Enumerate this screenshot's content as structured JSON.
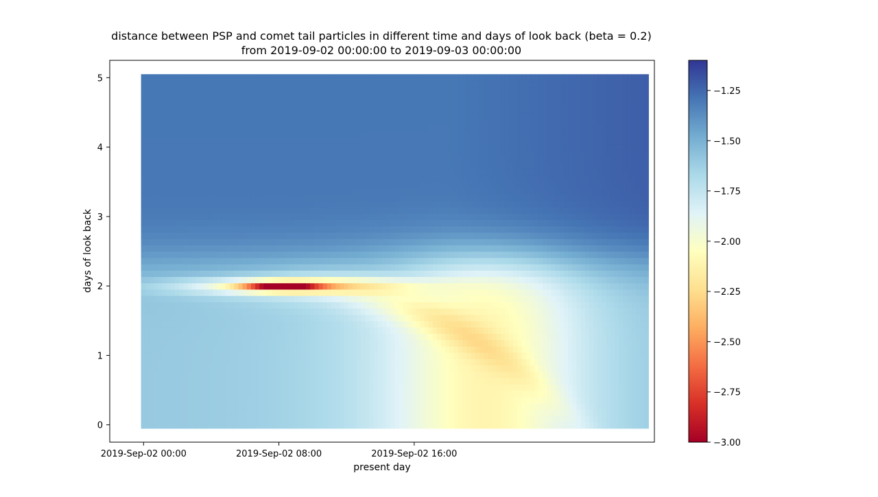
{
  "chart_data": {
    "type": "heatmap",
    "title_line1": "distance between PSP and comet tail particles in different time and days of look back (beta = 0.2)",
    "title_line2": "from 2019-09-02 00:00:00 to 2019-09-03 00:00:00",
    "xlabel": "present day",
    "ylabel": "days of look back",
    "x_unit": "hours since 2019-09-02 00:00",
    "xlim": [
      -2.0,
      30.2
    ],
    "ylim": [
      -0.25,
      5.25
    ],
    "data_x_range": [
      -0.15,
      29.85
    ],
    "data_y_range": [
      -0.05,
      5.05
    ],
    "x_ticks": [
      {
        "value": 0,
        "label": "2019-Sep-02 00:00"
      },
      {
        "value": 8,
        "label": "2019-Sep-02 08:00"
      },
      {
        "value": 16,
        "label": "2019-Sep-02 16:00"
      }
    ],
    "y_ticks": [
      {
        "value": 0,
        "label": "0"
      },
      {
        "value": 1,
        "label": "1"
      },
      {
        "value": 2,
        "label": "2"
      },
      {
        "value": 3,
        "label": "3"
      },
      {
        "value": 4,
        "label": "4"
      },
      {
        "value": 5,
        "label": "5"
      }
    ],
    "colormap": "RdYlBu",
    "colormap_stops": [
      "#a50026",
      "#d73027",
      "#f46d43",
      "#fdae61",
      "#fee090",
      "#ffffbf",
      "#e0f3f8",
      "#abd9e9",
      "#74add1",
      "#4575b4",
      "#313695"
    ],
    "colorbar": {
      "range": [
        -3.0,
        -1.1
      ],
      "ticks": [
        {
          "value": -3.0,
          "label": "−3.00"
        },
        {
          "value": -2.75,
          "label": "−2.75"
        },
        {
          "value": -2.5,
          "label": "−2.50"
        },
        {
          "value": -2.25,
          "label": "−2.25"
        },
        {
          "value": -2.0,
          "label": "−2.00"
        },
        {
          "value": -1.75,
          "label": "−1.75"
        },
        {
          "value": -1.5,
          "label": "−1.50"
        },
        {
          "value": -1.25,
          "label": "−1.25"
        }
      ]
    },
    "features": {
      "minimum": {
        "x": 8.2,
        "y": 2.0,
        "value": -3.0
      },
      "upper_band_value": -1.3,
      "lower_left_value": -1.6,
      "lower_right_value": -2.05
    }
  }
}
